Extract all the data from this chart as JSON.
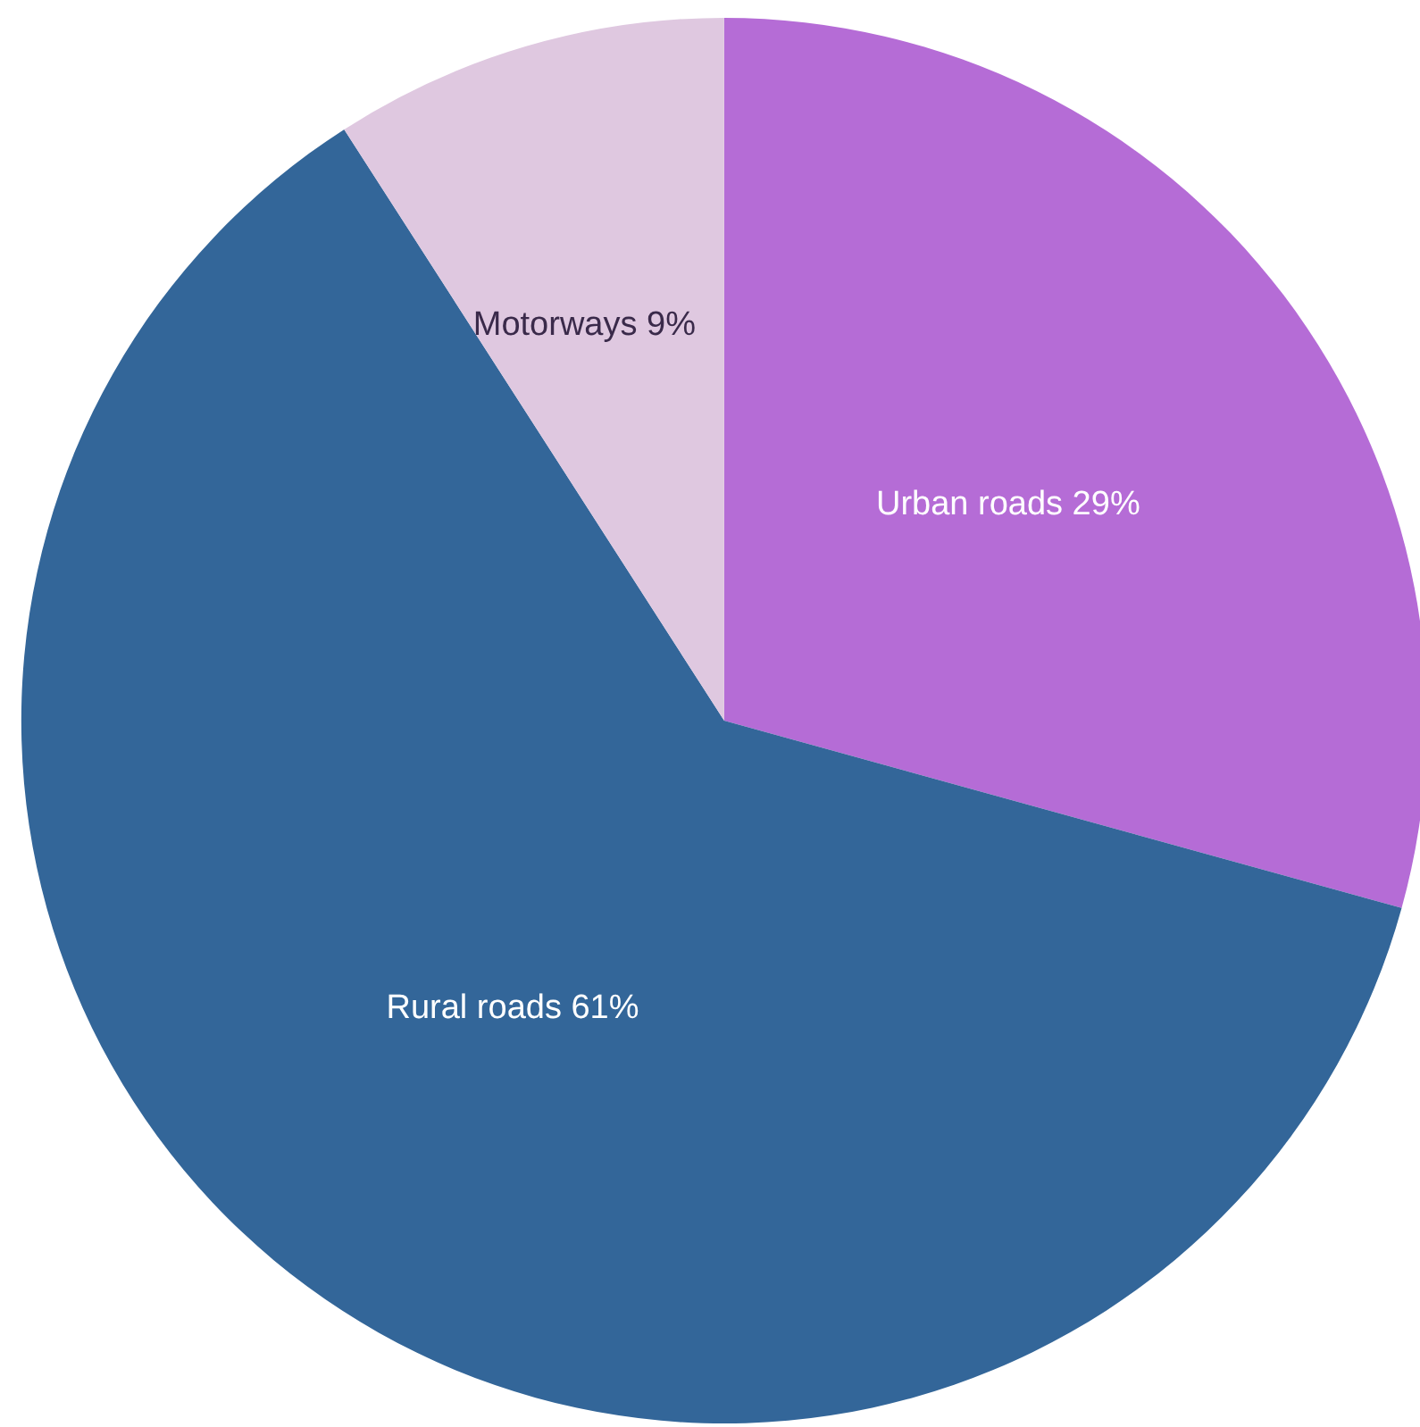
{
  "chart_data": {
    "type": "pie",
    "categories": [
      "Urban roads",
      "Rural roads",
      "Motorways"
    ],
    "values": [
      29,
      61,
      9
    ],
    "value_labels": [
      "29%",
      "61%",
      "9%"
    ],
    "colors": [
      "#b56cd6",
      "#336699",
      "#dfc8e0"
    ]
  }
}
